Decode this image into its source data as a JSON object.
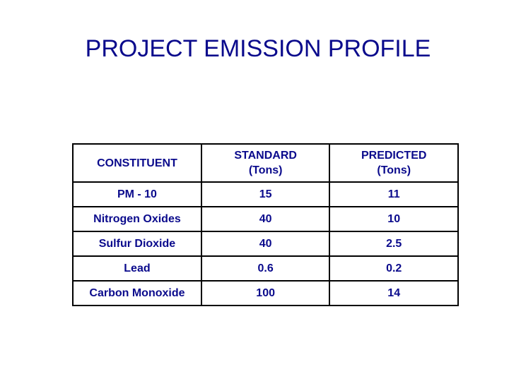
{
  "slide": {
    "title": "PROJECT EMISSION PROFILE"
  },
  "table": {
    "headers": [
      {
        "line1": "CONSTITUENT",
        "line2": ""
      },
      {
        "line1": "STANDARD",
        "line2": "(Tons)"
      },
      {
        "line1": "PREDICTED",
        "line2": "(Tons)"
      }
    ],
    "rows": [
      {
        "constituent": "PM - 10",
        "standard": "15",
        "predicted": "11"
      },
      {
        "constituent": "Nitrogen Oxides",
        "standard": "40",
        "predicted": "10"
      },
      {
        "constituent": "Sulfur Dioxide",
        "standard": "40",
        "predicted": "2.5"
      },
      {
        "constituent": "Lead",
        "standard": "0.6",
        "predicted": "0.2"
      },
      {
        "constituent": "Carbon Monoxide",
        "standard": "100",
        "predicted": "14"
      }
    ]
  },
  "colors": {
    "text": "#0a0a8c",
    "border": "#000000",
    "background": "#ffffff"
  }
}
